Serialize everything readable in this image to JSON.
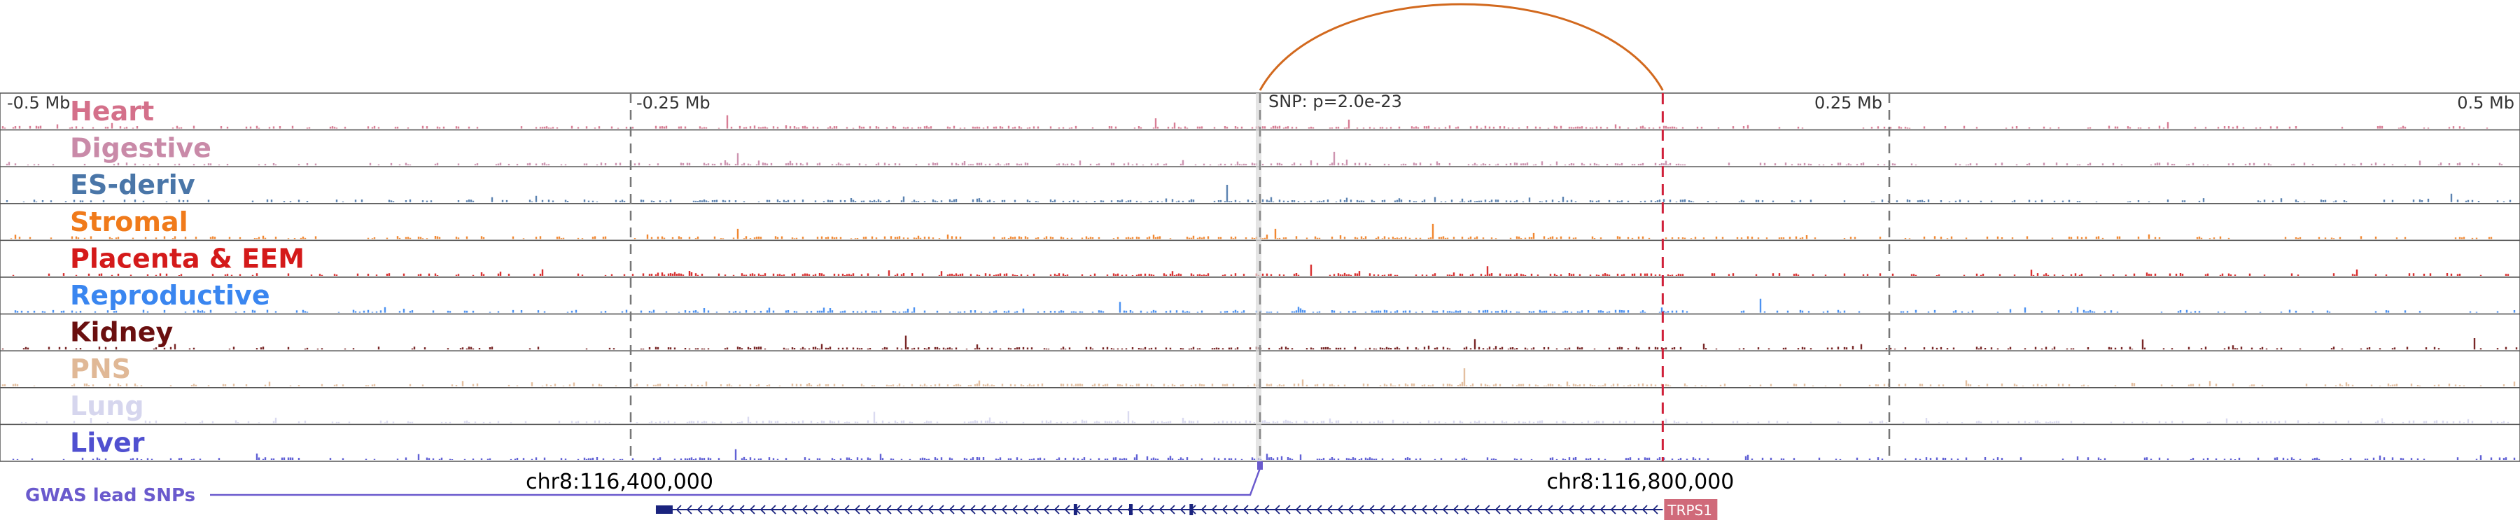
{
  "colors": {
    "loop": "#d2691e",
    "snp_line": "#c0c0c0",
    "anchor_dash": "#d0203a",
    "gwas": "#6a5acd",
    "gene_body": "#1a237e",
    "gene_label_bg": "#d06a7a"
  },
  "axis": {
    "ticks": [
      {
        "pos": -0.5,
        "label": "-0.5 Mb"
      },
      {
        "pos": -0.25,
        "label": "-0.25 Mb"
      },
      {
        "pos": 0.25,
        "label": "0.25 Mb"
      },
      {
        "pos": 0.5,
        "label": "0.5 Mb"
      }
    ],
    "snp_label": "SNP: p=2.0e-23",
    "snp_pos": 0.0,
    "loop_end_pos": 0.16,
    "range": [
      -0.5,
      0.5
    ]
  },
  "tracks": [
    {
      "name": "Heart",
      "color": "#d4708a"
    },
    {
      "name": "Digestive",
      "color": "#c98aa8"
    },
    {
      "name": "ES-deriv",
      "color": "#4a76a8"
    },
    {
      "name": "Stromal",
      "color": "#f07a1a"
    },
    {
      "name": "Placenta & EEM",
      "color": "#d41a1a"
    },
    {
      "name": "Reproductive",
      "color": "#3a86f0"
    },
    {
      "name": "Kidney",
      "color": "#6a0f0f"
    },
    {
      "name": "PNS",
      "color": "#e0b896"
    },
    {
      "name": "Lung",
      "color": "#d6d6ee"
    },
    {
      "name": "Liver",
      "color": "#5050d0"
    }
  ],
  "coords": {
    "left": {
      "label": "chr8:116,400,000",
      "pos": -0.26
    },
    "right": {
      "label": "chr8:116,800,000",
      "pos": 0.14
    }
  },
  "gwas": {
    "label": "GWAS lead SNPs"
  },
  "gene": {
    "name": "TRPS1",
    "start_pos": -0.24,
    "end_pos": 0.16
  }
}
